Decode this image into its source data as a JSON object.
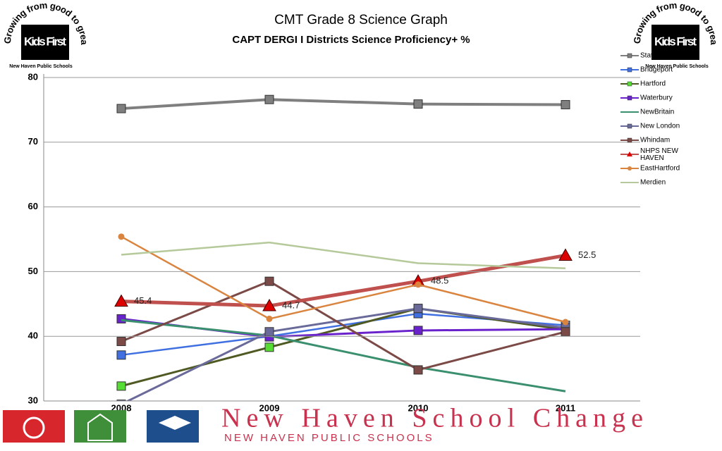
{
  "chart_data": {
    "type": "line",
    "title": "CMT Grade 8 Science Graph",
    "subtitle": "CAPT DERGI I Districts Science Proficiency+ %",
    "categories": [
      "2008",
      "2009",
      "2010",
      "2011"
    ],
    "ylim": [
      30,
      80
    ],
    "yticks": [
      30,
      40,
      50,
      60,
      70,
      80
    ],
    "grid": true,
    "legend": "top-right",
    "series": [
      {
        "name": "State",
        "color": "#7f7f7f",
        "marker": "square",
        "width": 4,
        "values": [
          75.2,
          76.6,
          75.9,
          75.8
        ]
      },
      {
        "name": "Bridgeport",
        "color": "#3f6fe0",
        "marker": "square",
        "width": 2.5,
        "values": [
          37.1,
          40.0,
          43.5,
          41.7
        ]
      },
      {
        "name": "Hartford",
        "color": "#4f5a23",
        "marker": "square",
        "marker_color": "#55dd33",
        "width": 3,
        "values": [
          32.3,
          38.3,
          44.3,
          41.0
        ]
      },
      {
        "name": "Waterbury",
        "color": "#6a22cc",
        "marker": "square",
        "width": 3,
        "values": [
          42.7,
          39.9,
          40.9,
          41.1
        ]
      },
      {
        "name": "NewBritain",
        "color": "#3a8f6e",
        "marker": "none",
        "width": 3,
        "values": [
          42.5,
          40.1,
          35.2,
          31.5
        ]
      },
      {
        "name": "New London",
        "color": "#6a6a9a",
        "marker": "square",
        "width": 3,
        "values": [
          29.5,
          40.7,
          44.3,
          41.3
        ]
      },
      {
        "name": "Whindam",
        "color": "#7b4a47",
        "marker": "square",
        "width": 3,
        "values": [
          39.2,
          48.5,
          34.8,
          40.7
        ]
      },
      {
        "name": "NHPS NEW HAVEN",
        "color": "#c0504d",
        "marker": "triangle",
        "marker_color": "#dd0000",
        "width": 5,
        "data_labels": true,
        "values": [
          45.4,
          44.7,
          48.5,
          52.5
        ]
      },
      {
        "name": "EastHartford",
        "color": "#d9843f",
        "marker": "circle",
        "width": 2.5,
        "values": [
          55.4,
          42.7,
          48.0,
          42.2
        ]
      },
      {
        "name": "Merdien",
        "color": "#b5c99a",
        "marker": "none",
        "width": 2.5,
        "values": [
          52.6,
          54.5,
          51.3,
          50.5
        ]
      }
    ]
  },
  "logo": {
    "motto": "Growing from good to great",
    "brand": "Kids First",
    "org": "New Haven Public Schools"
  },
  "footer": {
    "title": "New Haven School Change",
    "subtitle": "NEW HAVEN PUBLIC SCHOOLS"
  }
}
